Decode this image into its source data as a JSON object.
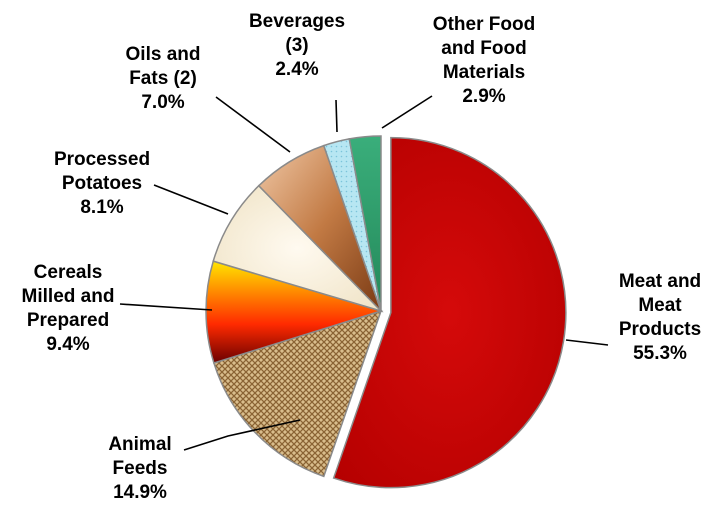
{
  "chart_data": {
    "type": "pie",
    "title": "",
    "slices": [
      {
        "label": [
          "Meat and",
          "Meat",
          "Products"
        ],
        "value": 55.3,
        "value_label": "55.3%",
        "fill": "meat",
        "color": "#c40000"
      },
      {
        "label": [
          "Animal",
          "Feeds"
        ],
        "value": 14.9,
        "value_label": "14.9%",
        "fill": "feeds",
        "color": "#c8a77a"
      },
      {
        "label": [
          "Cereals",
          "Milled and",
          "Prepared"
        ],
        "value": 9.4,
        "value_label": "9.4%",
        "fill": "cereals",
        "color": "#ff4000"
      },
      {
        "label": [
          "Processed",
          "Potatoes"
        ],
        "value": 8.1,
        "value_label": "8.1%",
        "fill": "potatoes",
        "color": "#f6ecd6"
      },
      {
        "label": [
          "Oils and",
          "Fats (2)"
        ],
        "value": 7.0,
        "value_label": "7.0%",
        "fill": "oils",
        "color": "#b5703e"
      },
      {
        "label": [
          "Beverages",
          "(3)"
        ],
        "value": 2.4,
        "value_label": "2.4%",
        "fill": "beverages",
        "color": "#a8dfee"
      },
      {
        "label": [
          "Other Food",
          "and Food",
          "Materials"
        ],
        "value": 2.9,
        "value_label": "2.9%",
        "fill": "other",
        "color": "#2e9e6b"
      }
    ],
    "start_angle_deg": 0,
    "direction": "clockwise",
    "exploded_slice": "Meat and Meat Products",
    "legend": "none",
    "data_labels": "outside with leader lines"
  }
}
